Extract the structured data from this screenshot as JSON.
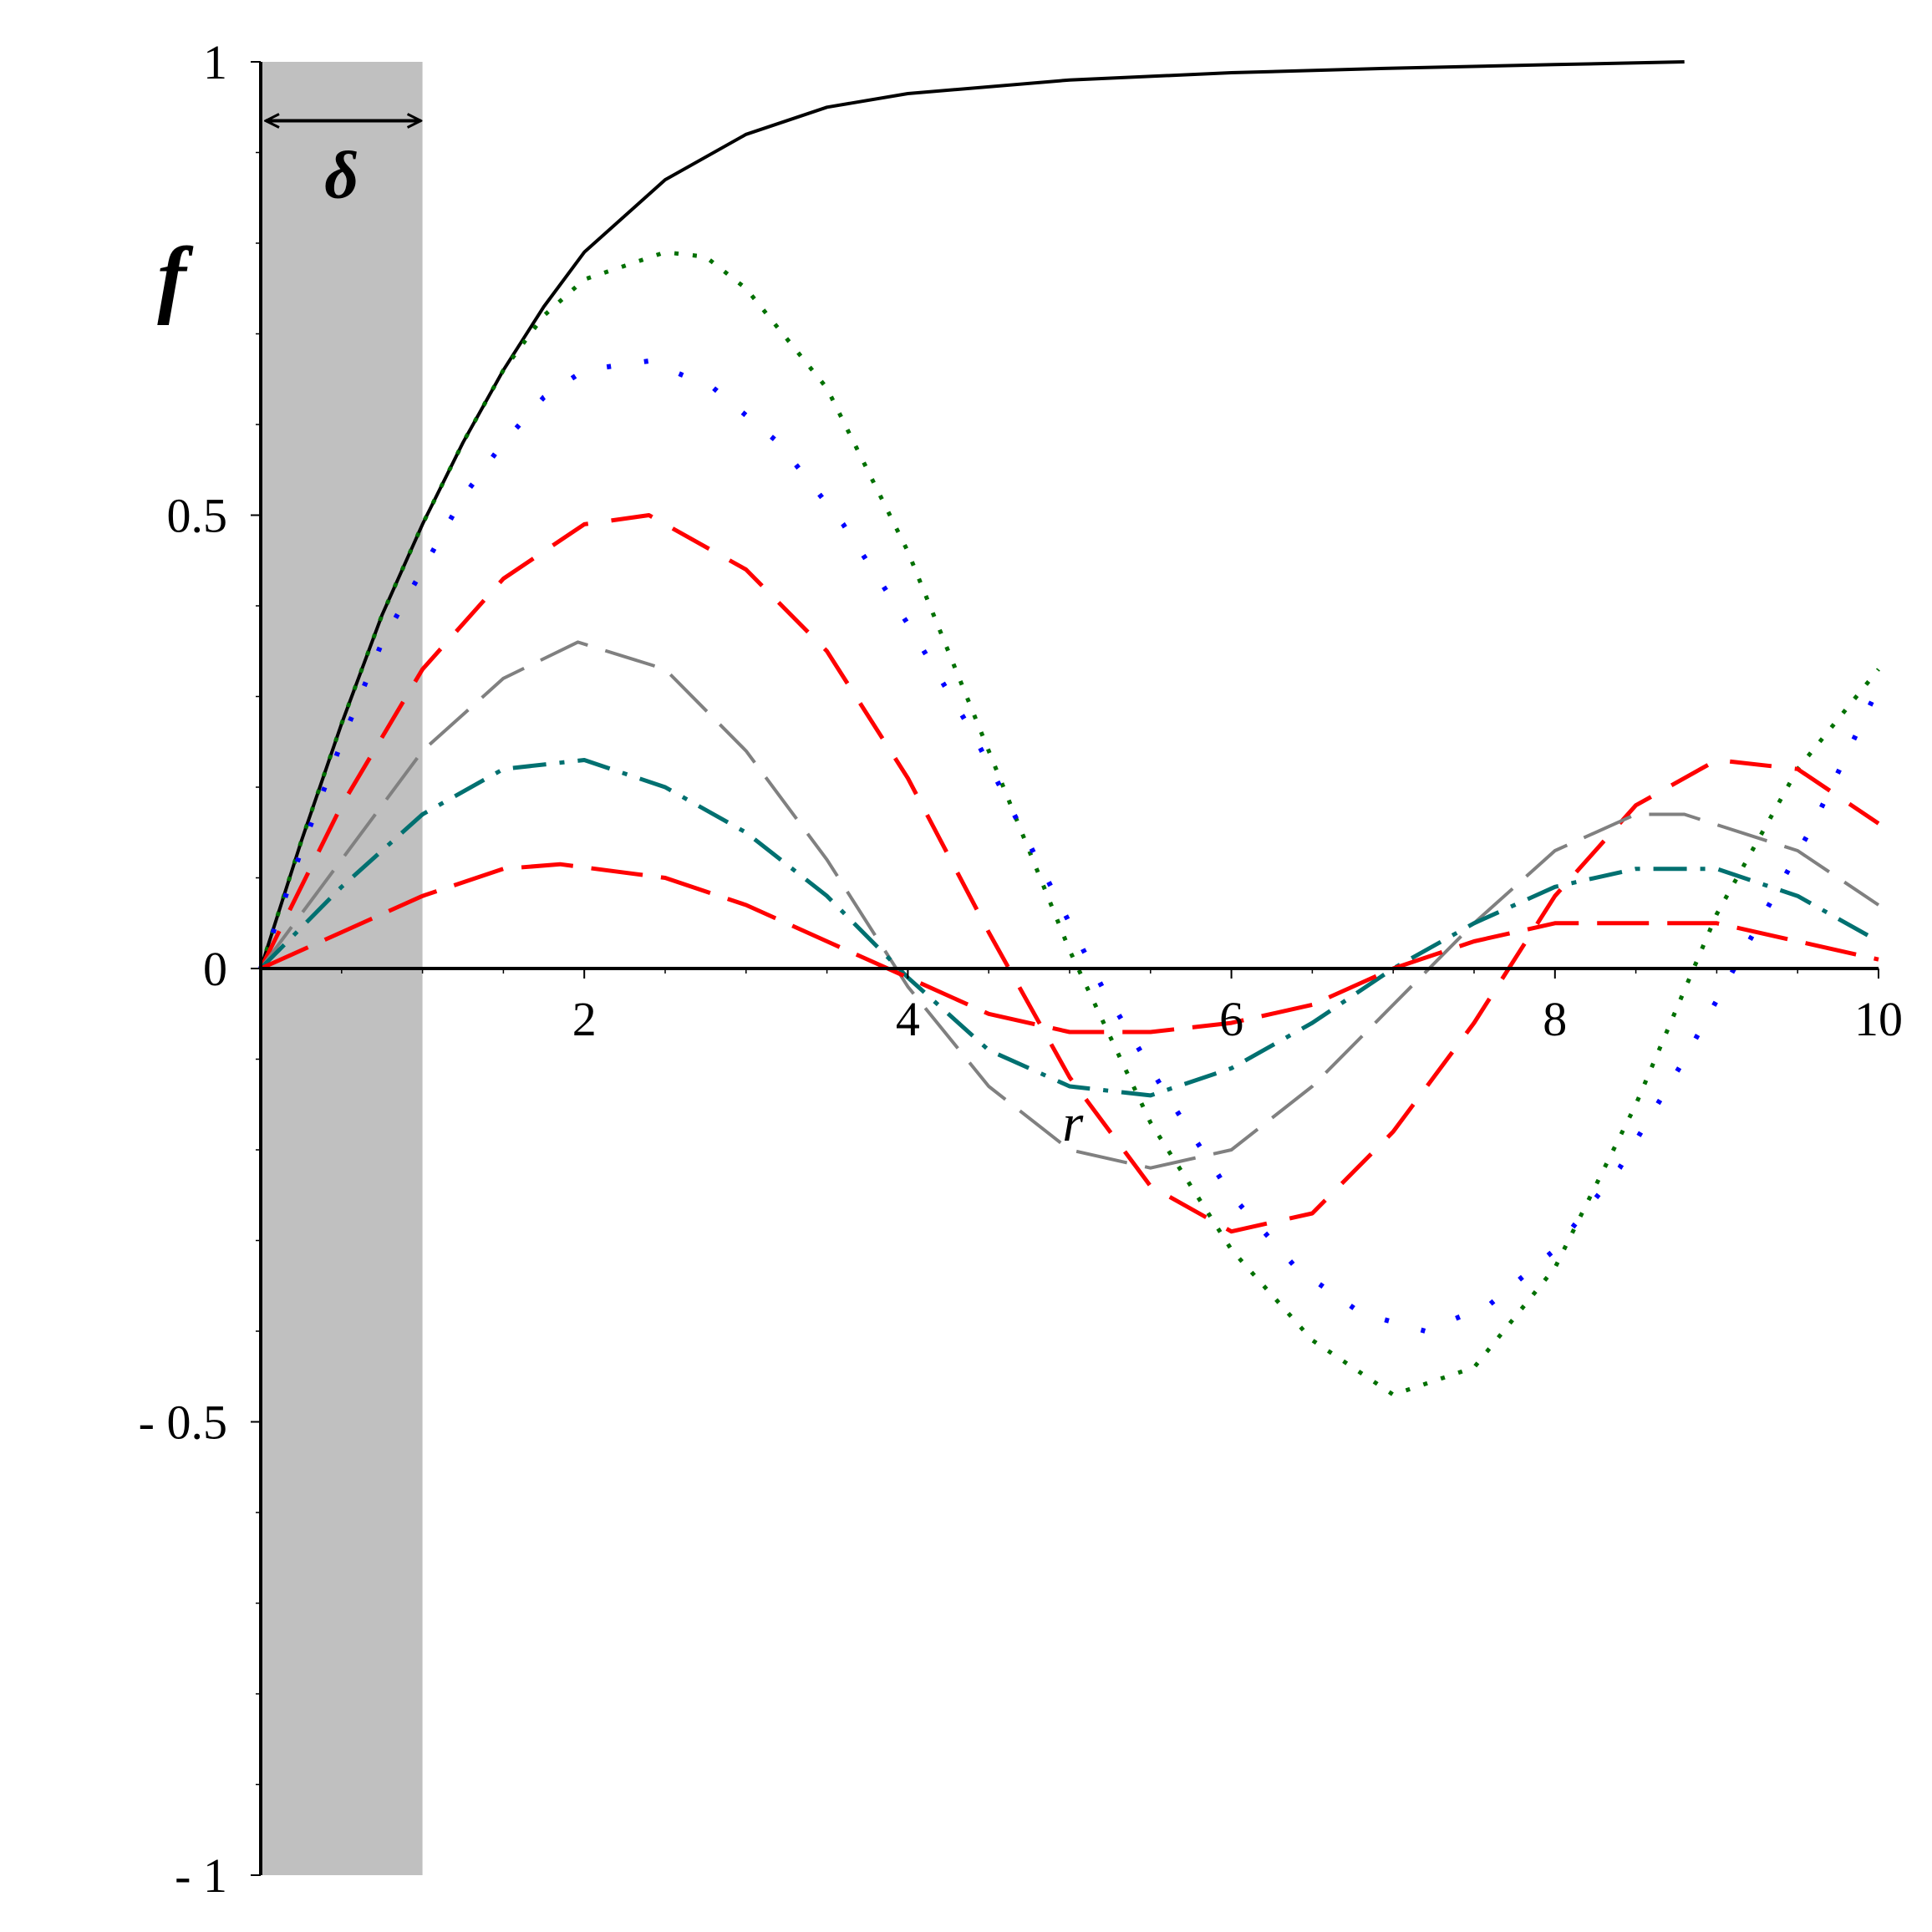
{
  "chart_data": {
    "type": "line",
    "title": "",
    "xlabel": "r",
    "ylabel": "f",
    "xlim": [
      0,
      10
    ],
    "ylim": [
      -1,
      1
    ],
    "grid": false,
    "legend": "none",
    "x_ticks": [
      {
        "value": 2,
        "label": "2"
      },
      {
        "value": 4,
        "label": "4"
      },
      {
        "value": 6,
        "label": "6"
      },
      {
        "value": 8,
        "label": "8"
      },
      {
        "value": 10,
        "label": "10"
      }
    ],
    "y_ticks": [
      {
        "value": 1,
        "label": "1"
      },
      {
        "value": 0.5,
        "label": "0.5"
      },
      {
        "value": 0,
        "label": "0"
      },
      {
        "value": -0.5,
        "label": "- 0.5"
      },
      {
        "value": -1,
        "label": "- 1"
      }
    ],
    "shaded_region": {
      "x_from": 0,
      "x_to": 1,
      "color": "#c0c0c0"
    },
    "annotation": {
      "text": "δ",
      "from_x": 0,
      "to_x": 1,
      "y": 0.935
    },
    "series": [
      {
        "style": "solid",
        "color": "#000000",
        "width": 4,
        "points": [
          [
            0,
            0
          ],
          [
            0.25,
            0.14
          ],
          [
            0.5,
            0.27
          ],
          [
            0.75,
            0.39
          ],
          [
            1,
            0.49
          ],
          [
            1.25,
            0.58
          ],
          [
            1.5,
            0.66
          ],
          [
            1.75,
            0.73
          ],
          [
            2,
            0.79
          ],
          [
            2.5,
            0.87
          ],
          [
            3,
            0.92
          ],
          [
            3.5,
            0.95
          ],
          [
            4,
            0.965
          ],
          [
            5,
            0.98
          ],
          [
            6,
            0.988
          ],
          [
            7,
            0.993
          ],
          [
            8,
            0.997
          ],
          [
            8.8,
            1.0
          ]
        ]
      },
      {
        "style": "dotted",
        "color": "#007000",
        "width": 5,
        "points": [
          [
            0,
            0
          ],
          [
            0.25,
            0.14
          ],
          [
            0.5,
            0.27
          ],
          [
            0.75,
            0.39
          ],
          [
            1,
            0.49
          ],
          [
            1.25,
            0.58
          ],
          [
            1.5,
            0.66
          ],
          [
            1.75,
            0.72
          ],
          [
            2,
            0.76
          ],
          [
            2.5,
            0.79
          ],
          [
            2.75,
            0.785
          ],
          [
            3,
            0.75
          ],
          [
            3.5,
            0.64
          ],
          [
            4,
            0.46
          ],
          [
            4.5,
            0.24
          ],
          [
            5,
            0.02
          ],
          [
            5.5,
            -0.17
          ],
          [
            6,
            -0.31
          ],
          [
            6.5,
            -0.41
          ],
          [
            7,
            -0.47
          ],
          [
            7.5,
            -0.44
          ],
          [
            8,
            -0.33
          ],
          [
            8.5,
            -0.15
          ],
          [
            9,
            0.06
          ],
          [
            9.5,
            0.22
          ],
          [
            10,
            0.33
          ]
        ]
      },
      {
        "style": "dotted-sparse",
        "color": "#0000ff",
        "width": 6,
        "points": [
          [
            0,
            0
          ],
          [
            0.25,
            0.13
          ],
          [
            0.5,
            0.25
          ],
          [
            0.75,
            0.36
          ],
          [
            1,
            0.44
          ],
          [
            1.25,
            0.52
          ],
          [
            1.5,
            0.58
          ],
          [
            1.75,
            0.63
          ],
          [
            2,
            0.66
          ],
          [
            2.4,
            0.67
          ],
          [
            2.8,
            0.64
          ],
          [
            3.2,
            0.58
          ],
          [
            3.6,
            0.49
          ],
          [
            4,
            0.38
          ],
          [
            4.4,
            0.26
          ],
          [
            4.8,
            0.12
          ],
          [
            5.2,
            -0.02
          ],
          [
            5.6,
            -0.14
          ],
          [
            6,
            -0.25
          ],
          [
            6.4,
            -0.33
          ],
          [
            6.8,
            -0.38
          ],
          [
            7.2,
            -0.4
          ],
          [
            7.6,
            -0.37
          ],
          [
            8,
            -0.31
          ],
          [
            8.4,
            -0.22
          ],
          [
            8.8,
            -0.1
          ],
          [
            9.2,
            0.03
          ],
          [
            9.6,
            0.16
          ],
          [
            10,
            0.31
          ]
        ]
      },
      {
        "style": "dashed-long",
        "color": "#ff0000",
        "width": 5,
        "points": [
          [
            0,
            0
          ],
          [
            0.5,
            0.18
          ],
          [
            1,
            0.33
          ],
          [
            1.5,
            0.43
          ],
          [
            2,
            0.49
          ],
          [
            2.4,
            0.5
          ],
          [
            3,
            0.44
          ],
          [
            3.5,
            0.35
          ],
          [
            4,
            0.21
          ],
          [
            4.5,
            0.04
          ],
          [
            5,
            -0.12
          ],
          [
            5.5,
            -0.24
          ],
          [
            6,
            -0.29
          ],
          [
            6.5,
            -0.27
          ],
          [
            7,
            -0.18
          ],
          [
            7.5,
            -0.06
          ],
          [
            8,
            0.08
          ],
          [
            8.5,
            0.18
          ],
          [
            9,
            0.23
          ],
          [
            9.5,
            0.22
          ],
          [
            10,
            0.16
          ]
        ]
      },
      {
        "style": "dashed",
        "color": "#808080",
        "width": 4,
        "points": [
          [
            0,
            0
          ],
          [
            0.5,
            0.12
          ],
          [
            1,
            0.24
          ],
          [
            1.5,
            0.32
          ],
          [
            1.96,
            0.36
          ],
          [
            2.5,
            0.33
          ],
          [
            3,
            0.24
          ],
          [
            3.5,
            0.12
          ],
          [
            4,
            -0.02
          ],
          [
            4.5,
            -0.13
          ],
          [
            5,
            -0.2
          ],
          [
            5.5,
            -0.22
          ],
          [
            6,
            -0.2
          ],
          [
            6.5,
            -0.13
          ],
          [
            7,
            -0.04
          ],
          [
            7.5,
            0.05
          ],
          [
            8,
            0.13
          ],
          [
            8.5,
            0.17
          ],
          [
            8.8,
            0.17
          ],
          [
            9.5,
            0.13
          ],
          [
            10,
            0.07
          ]
        ]
      },
      {
        "style": "dashdot",
        "color": "#007070",
        "width": 5,
        "points": [
          [
            0,
            0
          ],
          [
            0.5,
            0.09
          ],
          [
            1,
            0.17
          ],
          [
            1.5,
            0.22
          ],
          [
            2,
            0.23
          ],
          [
            2.5,
            0.2
          ],
          [
            3,
            0.15
          ],
          [
            3.5,
            0.08
          ],
          [
            4,
            -0.01
          ],
          [
            4.5,
            -0.09
          ],
          [
            5,
            -0.13
          ],
          [
            5.5,
            -0.14
          ],
          [
            6,
            -0.11
          ],
          [
            6.5,
            -0.06
          ],
          [
            7,
            0.0
          ],
          [
            7.5,
            0.05
          ],
          [
            8,
            0.09
          ],
          [
            8.5,
            0.11
          ],
          [
            9,
            0.11
          ],
          [
            9.5,
            0.08
          ],
          [
            10,
            0.03
          ]
        ]
      },
      {
        "style": "dashed",
        "color": "#ff0000",
        "width": 5,
        "points": [
          [
            0,
            0
          ],
          [
            0.5,
            0.04
          ],
          [
            1,
            0.08
          ],
          [
            1.5,
            0.11
          ],
          [
            1.85,
            0.115
          ],
          [
            2.5,
            0.1
          ],
          [
            3,
            0.07
          ],
          [
            3.5,
            0.03
          ],
          [
            4,
            -0.01
          ],
          [
            4.5,
            -0.05
          ],
          [
            5,
            -0.07
          ],
          [
            5.5,
            -0.07
          ],
          [
            6,
            -0.06
          ],
          [
            6.5,
            -0.04
          ],
          [
            7,
            0.0
          ],
          [
            7.5,
            0.03
          ],
          [
            8,
            0.05
          ],
          [
            8.5,
            0.05
          ],
          [
            9,
            0.05
          ],
          [
            9.5,
            0.03
          ],
          [
            10,
            0.01
          ]
        ]
      }
    ]
  }
}
